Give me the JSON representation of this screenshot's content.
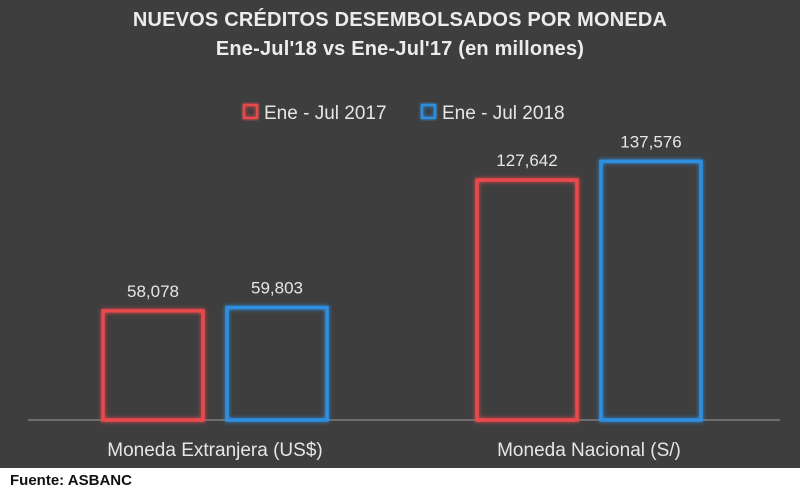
{
  "chart_data": {
    "type": "bar",
    "title": "NUEVOS CRÉDITOS DESEMBOLSADOS POR MONEDA",
    "subtitle": "Ene-Jul'18 vs Ene-Jul'17 (en millones)",
    "categories": [
      "Moneda Extranjera (US$)",
      "Moneda Nacional (S/)"
    ],
    "series": [
      {
        "name": "Ene - Jul 2017",
        "color": "#e8484e",
        "values": [
          58078,
          127642
        ],
        "labels": [
          "58,078",
          "127,642"
        ]
      },
      {
        "name": "Ene - Jul 2018",
        "color": "#2f8fe0",
        "values": [
          59803,
          137576
        ],
        "labels": [
          "59,803",
          "137,576"
        ]
      }
    ],
    "ylim": [
      0,
      150000
    ],
    "grid": false,
    "legend_position": "top-center"
  },
  "footer": {
    "source": "Fuente: ASBANC"
  },
  "colors": {
    "background": "#3e3e3e",
    "text": "#e6e6e6",
    "axis": "#8a8a8a"
  }
}
